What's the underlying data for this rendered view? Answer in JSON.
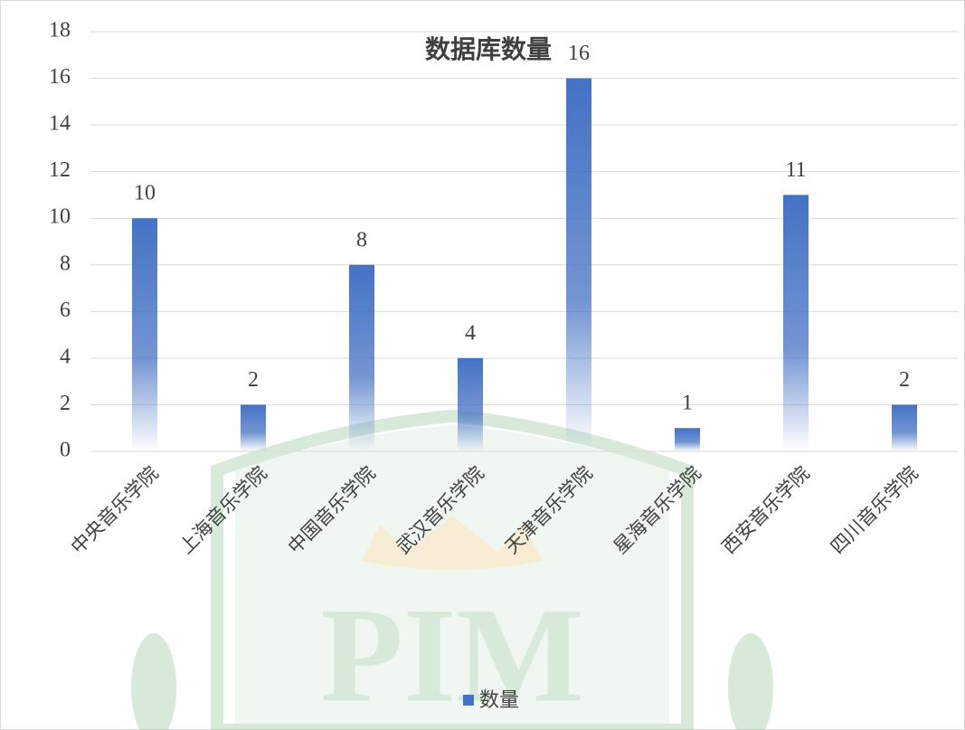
{
  "chart_data": {
    "type": "bar",
    "title": "数据库数量",
    "categories": [
      "中央音乐学院",
      "上海音乐学院",
      "中国音乐学院",
      "武汉音乐学院",
      "天津音乐学院",
      "星海音乐学院",
      "西安音乐学院",
      "四川音乐学院"
    ],
    "series": [
      {
        "name": "数量",
        "color": "#4472c4",
        "values": [
          10,
          2,
          8,
          4,
          16,
          1,
          11,
          2
        ]
      }
    ],
    "ylim": [
      0,
      18
    ],
    "yticks": [
      0,
      2,
      4,
      6,
      8,
      10,
      12,
      14,
      16,
      18
    ],
    "grid": true,
    "legend": "bottom"
  },
  "watermark": {
    "text": "PIM"
  }
}
